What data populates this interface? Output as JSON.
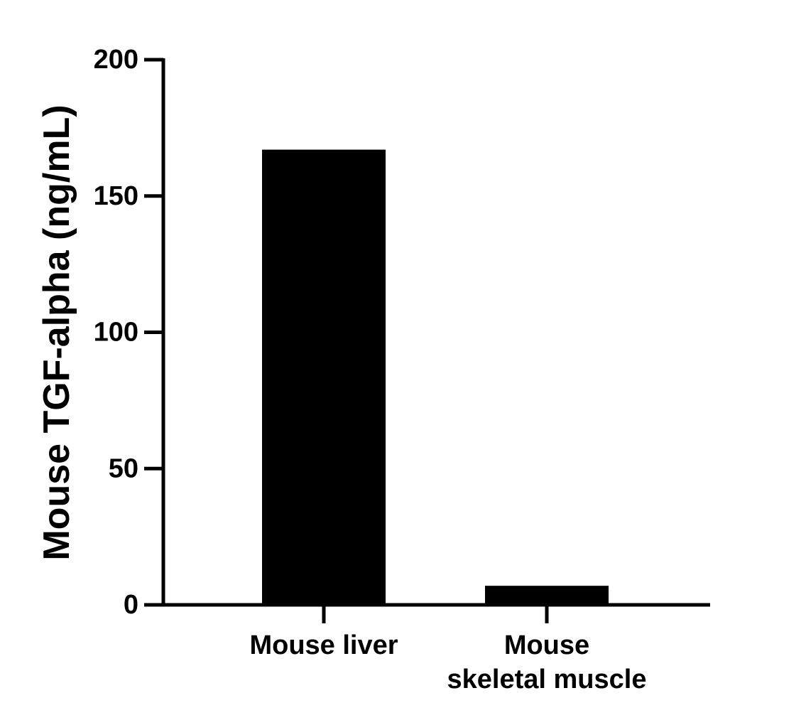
{
  "chart_data": {
    "type": "bar",
    "title": "",
    "xlabel": "",
    "ylabel": "Mouse TGF-alpha (ng/mL)",
    "ylim": [
      0,
      200
    ],
    "yticks": [
      0,
      50,
      100,
      150,
      200
    ],
    "categories": [
      [
        "Mouse liver"
      ],
      [
        "Mouse",
        "skeletal muscle"
      ]
    ],
    "values": [
      167,
      7
    ],
    "grid": false,
    "legend": "none",
    "bar_color": "#000000"
  }
}
